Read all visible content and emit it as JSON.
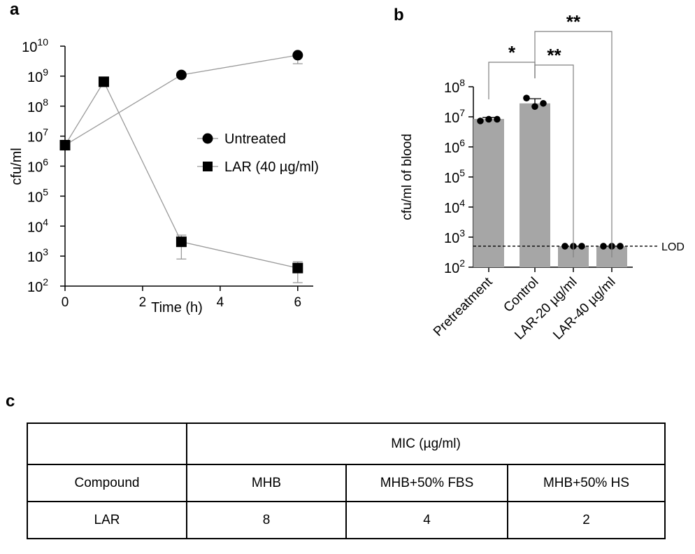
{
  "panels": {
    "a": "a",
    "b": "b",
    "c": "c"
  },
  "chart_data": [
    {
      "type": "line",
      "panel": "a",
      "xlabel": "Time (h)",
      "ylabel": "cfu/ml",
      "xlim": [
        0,
        6.4
      ],
      "xticks": [
        0,
        2,
        4,
        6
      ],
      "yscale": "log",
      "ylim": [
        100,
        10000000000
      ],
      "yticks": [
        {
          "value": 100,
          "base": "10",
          "exp": "2"
        },
        {
          "value": 1000,
          "base": "10",
          "exp": "3"
        },
        {
          "value": 10000,
          "base": "10",
          "exp": "4"
        },
        {
          "value": 100000,
          "base": "10",
          "exp": "5"
        },
        {
          "value": 1000000,
          "base": "10",
          "exp": "6"
        },
        {
          "value": 10000000,
          "base": "10",
          "exp": "7"
        },
        {
          "value": 100000000,
          "base": "10",
          "exp": "8"
        },
        {
          "value": 1000000000,
          "base": "10",
          "exp": "9"
        },
        {
          "value": 10000000000,
          "base": "10",
          "exp": "10"
        }
      ],
      "grid": false,
      "legend": "center-right",
      "series": [
        {
          "name": "Untreated",
          "marker": "circle",
          "x": [
            0,
            3,
            6
          ],
          "y": [
            5000000,
            1100000000,
            5000000000
          ],
          "error_low": [
            null,
            null,
            2600000000
          ],
          "error_high": [
            null,
            null,
            null
          ]
        },
        {
          "name": "LAR (40 µg/ml)",
          "marker": "square",
          "x": [
            0,
            1,
            3,
            6
          ],
          "y": [
            5000000,
            650000000,
            3000,
            400
          ],
          "y_note": "",
          "error_low": [
            null,
            null,
            800,
            130
          ],
          "error_high": [
            null,
            null,
            5000,
            650
          ]
        }
      ]
    },
    {
      "type": "bar",
      "panel": "b",
      "ylabel": "cfu/ml of blood",
      "yscale": "log",
      "ylim": [
        100,
        100000000
      ],
      "yticks": [
        {
          "value": 100,
          "base": "10",
          "exp": "2"
        },
        {
          "value": 1000,
          "base": "10",
          "exp": "3"
        },
        {
          "value": 10000,
          "base": "10",
          "exp": "4"
        },
        {
          "value": 100000,
          "base": "10",
          "exp": "5"
        },
        {
          "value": 1000000,
          "base": "10",
          "exp": "6"
        },
        {
          "value": 10000000,
          "base": "10",
          "exp": "7"
        },
        {
          "value": 100000000,
          "base": "10",
          "exp": "8"
        }
      ],
      "categories": [
        "Pretreatment",
        "Control",
        "LAR-20 µg/ml",
        "LAR-40 µg/ml"
      ],
      "values": [
        8500000,
        28000000,
        500,
        500
      ],
      "error_high": [
        9500000,
        40000000,
        null,
        null
      ],
      "points": [
        [
          7300000,
          8300000,
          8300000
        ],
        [
          42000000,
          22000000,
          28000000
        ],
        [
          500,
          500,
          500
        ],
        [
          500,
          500,
          500
        ]
      ],
      "lod": {
        "value": 500,
        "label": "LOD"
      },
      "significance": [
        {
          "from": 0,
          "to": 1,
          "label": "*",
          "level": 1
        },
        {
          "from": 1,
          "to": 2,
          "label": "**",
          "level": 1
        },
        {
          "from": 1,
          "to": 3,
          "label": "**",
          "level": 2
        }
      ],
      "bar_color": "#a6a6a6",
      "grid": false
    },
    {
      "type": "table",
      "panel": "c",
      "header_group": "MIC (µg/ml)",
      "columns": [
        "Compound",
        "MHB",
        "MHB+50% FBS",
        "MHB+50% HS"
      ],
      "rows": [
        [
          "LAR",
          "8",
          "4",
          "2"
        ]
      ]
    }
  ]
}
